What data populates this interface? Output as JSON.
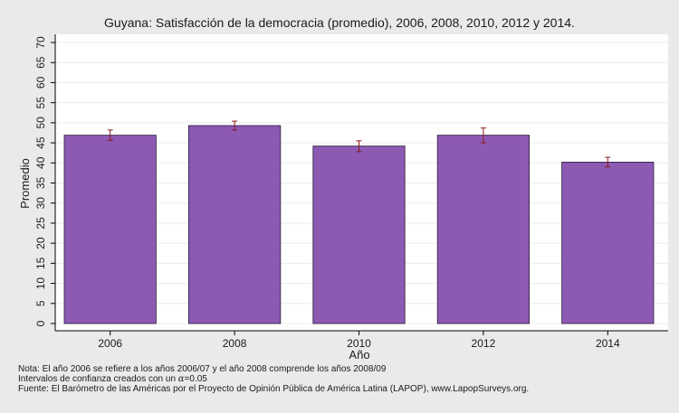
{
  "colors": {
    "background": "#eaeaea",
    "plot_background": "#ffffff",
    "bar_fill": "#8c59b3",
    "bar_stroke": "#2b1b3a",
    "error_bar": "#8b1a1a",
    "text": "#1a1a1a",
    "grid": "#ececec"
  },
  "chart_data": {
    "type": "bar",
    "title": "Guyana: Satisfacción de la democracia (promedio), 2006, 2008, 2010, 2012 y 2014.",
    "xlabel": "Año",
    "ylabel": "Promedio",
    "ylim": [
      0,
      70
    ],
    "yticks": [
      0,
      5,
      10,
      15,
      20,
      25,
      30,
      35,
      40,
      45,
      50,
      55,
      60,
      65,
      70
    ],
    "grid": true,
    "categories": [
      "2006",
      "2008",
      "2010",
      "2012",
      "2014"
    ],
    "values": [
      46.9,
      49.3,
      44.2,
      46.9,
      40.2
    ],
    "ci_lower": [
      45.6,
      48.2,
      42.8,
      45.0,
      39.0
    ],
    "ci_upper": [
      48.2,
      50.4,
      45.5,
      48.7,
      41.4
    ]
  },
  "notes": {
    "line1": "Nota: El año 2006 se refiere a los años 2006/07 y el año 2008 comprende los años 2008/09",
    "line2": "Intervalos de confianza creados con un ",
    "alpha_symbol": "α",
    "alpha_value": "=0.05",
    "line3": "Fuente: El Barómetro de las Américas por el Proyecto de Opinión Pública de América Latina (LAPOP), www.LapopSurveys.org."
  }
}
